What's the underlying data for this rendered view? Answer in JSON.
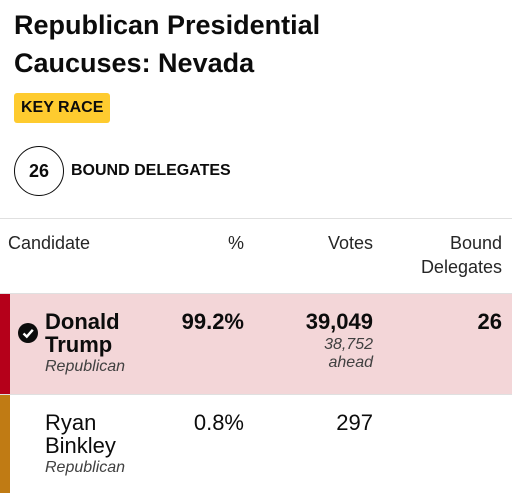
{
  "header": {
    "title": "Republican Presidential Caucuses: Nevada",
    "badge": "KEY RACE"
  },
  "delegates": {
    "count": "26",
    "label": "BOUND DELEGATES"
  },
  "table": {
    "columns": [
      "Candidate",
      "%",
      "Votes",
      "Bound Delegates"
    ],
    "rows": [
      {
        "name": "Donald Trump",
        "party": "Republican",
        "pct": "99.2%",
        "votes": "39,049",
        "ahead": "38,752 ahead",
        "bound": "26"
      },
      {
        "name": "Ryan Binkley",
        "party": "Republican",
        "pct": "0.8%",
        "votes": "297"
      }
    ]
  }
}
